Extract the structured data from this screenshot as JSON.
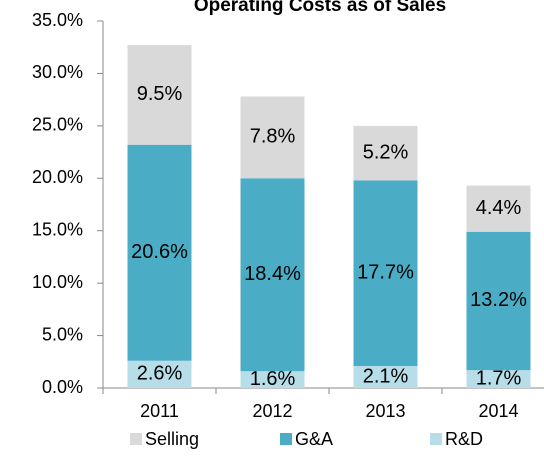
{
  "chart_data": {
    "type": "stacked_bar",
    "title": "Operating Costs as of Sales",
    "categories": [
      "2011",
      "2012",
      "2013",
      "2014"
    ],
    "series": [
      {
        "name": "R&D",
        "color": "#b7dee8",
        "values": [
          2.6,
          1.6,
          2.1,
          1.7
        ],
        "value_labels": [
          "2.6%",
          "1.6%",
          "2.1%",
          "1.7%"
        ]
      },
      {
        "name": "G&A",
        "color": "#4bacc6",
        "values": [
          20.6,
          18.4,
          17.7,
          13.2
        ],
        "value_labels": [
          "20.6%",
          "18.4%",
          "17.7%",
          "13.2%"
        ]
      },
      {
        "name": "Selling",
        "color": "#d9d9d9",
        "values": [
          9.5,
          7.8,
          5.2,
          4.4
        ],
        "value_labels": [
          "9.5%",
          "7.8%",
          "5.2%",
          "4.4%"
        ]
      }
    ],
    "legend_order": [
      "Selling",
      "G&A",
      "R&D"
    ],
    "ylim": [
      0,
      35
    ],
    "yticks": [
      {
        "value": 0,
        "label": "0.0%"
      },
      {
        "value": 5,
        "label": "5.0%"
      },
      {
        "value": 10,
        "label": "10.0%"
      },
      {
        "value": 15,
        "label": "15.0%"
      },
      {
        "value": 20,
        "label": "20.0%"
      },
      {
        "value": 25,
        "label": "25.0%"
      },
      {
        "value": 30,
        "label": "30.0%"
      },
      {
        "value": 35,
        "label": "35.0%"
      }
    ],
    "grid": false
  }
}
